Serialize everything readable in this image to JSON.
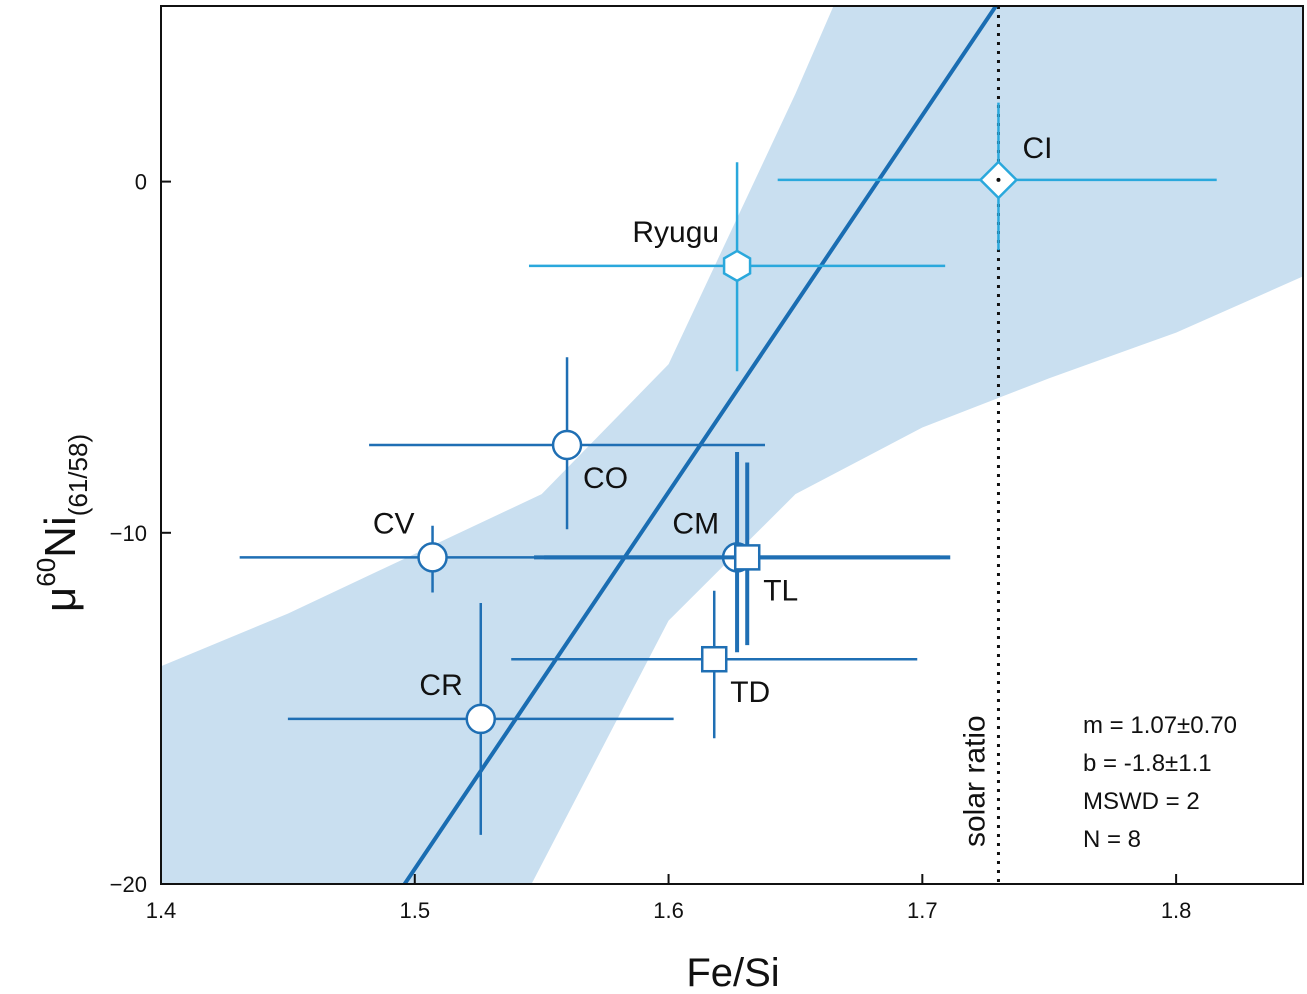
{
  "chart_data": {
    "type": "scatter",
    "xlabel": "Fe/Si",
    "ylabel": {
      "main": "μ",
      "sup": "60",
      "rest": "Ni",
      "sub": "(61/58)"
    },
    "xlim": [
      1.4,
      1.85
    ],
    "ylim": [
      -20,
      5
    ],
    "xticks": [
      {
        "value": 1.4,
        "label": "1.4"
      },
      {
        "value": 1.5,
        "label": "1.5"
      },
      {
        "value": 1.6,
        "label": "1.6"
      },
      {
        "value": 1.7,
        "label": "1.7"
      },
      {
        "value": 1.8,
        "label": "1.8"
      }
    ],
    "yticks": [
      {
        "value": -20,
        "label": "−20"
      },
      {
        "value": -10,
        "label": "−10"
      },
      {
        "value": 0,
        "label": "0"
      }
    ],
    "grid": false,
    "colors": {
      "dark_blue": "#1f6fb4",
      "light_blue": "#2aa8dc",
      "band": "#c9dff0",
      "fit_line": "#1a6db2"
    },
    "points": [
      {
        "label": "CI",
        "x": 1.73,
        "y": 0.05,
        "xerr": [
          0.087,
          0.086
        ],
        "yerr": [
          2.0,
          2.2
        ],
        "marker": "diamond",
        "color": "light",
        "thick": false,
        "label_pos": "upper-right"
      },
      {
        "label": "Ryugu",
        "x": 1.627,
        "y": -2.4,
        "xerr": [
          0.082,
          0.082
        ],
        "yerr": [
          3.0,
          2.95
        ],
        "marker": "hexagon",
        "color": "light",
        "thick": false,
        "label_pos": "upper-left"
      },
      {
        "label": "CO",
        "x": 1.56,
        "y": -7.5,
        "xerr": [
          0.078,
          0.078
        ],
        "yerr": [
          2.4,
          2.5
        ],
        "marker": "circle",
        "color": "dark",
        "thick": false,
        "label_pos": "lower-right"
      },
      {
        "label": "CV",
        "x": 1.507,
        "y": -10.7,
        "xerr": [
          0.076,
          0.077
        ],
        "yerr": [
          1.0,
          0.9
        ],
        "marker": "circle",
        "color": "dark",
        "thick": false,
        "label_pos": "upper-left"
      },
      {
        "label": "CM",
        "x": 1.627,
        "y": -10.7,
        "xerr": [
          0.08,
          0.08
        ],
        "yerr": [
          2.7,
          3.0
        ],
        "marker": "circle",
        "color": "dark",
        "thick": true,
        "label_pos": "upper-left"
      },
      {
        "label": "TL",
        "x": 1.631,
        "y": -10.7,
        "xerr": [
          0.08,
          0.08
        ],
        "yerr": [
          2.5,
          2.7
        ],
        "marker": "square",
        "color": "dark",
        "thick": true,
        "label_pos": "lower-right"
      },
      {
        "label": "TD",
        "x": 1.618,
        "y": -13.6,
        "xerr": [
          0.08,
          0.08
        ],
        "yerr": [
          2.25,
          1.95
        ],
        "marker": "square",
        "color": "dark",
        "thick": false,
        "label_pos": "lower-right"
      },
      {
        "label": "CR",
        "x": 1.526,
        "y": -15.3,
        "xerr": [
          0.076,
          0.076
        ],
        "yerr": [
          3.3,
          3.3
        ],
        "marker": "circle",
        "color": "dark",
        "thick": false,
        "label_pos": "upper-left"
      }
    ],
    "fit_line": {
      "x1": 1.496,
      "y1": -20,
      "x2": 1.729,
      "y2": 5
    },
    "confidence_band": {
      "upper": [
        [
          1.4,
          -13.8
        ],
        [
          1.45,
          -12.3
        ],
        [
          1.5,
          -10.6
        ],
        [
          1.55,
          -8.9
        ],
        [
          1.6,
          -5.2
        ],
        [
          1.65,
          2.5
        ],
        [
          1.665,
          5
        ],
        [
          1.85,
          5
        ]
      ],
      "lower": [
        [
          1.4,
          -20
        ],
        [
          1.546,
          -20
        ],
        [
          1.6,
          -12.5
        ],
        [
          1.65,
          -8.9
        ],
        [
          1.7,
          -7.0
        ],
        [
          1.75,
          -5.6
        ],
        [
          1.8,
          -4.3
        ],
        [
          1.85,
          -2.7
        ]
      ]
    },
    "solar_ratio": {
      "x": 1.73,
      "label": "solar ratio"
    },
    "stats": [
      "m = 1.07±0.70",
      "b = -1.8±1.1",
      "MSWD = 2",
      "N = 8"
    ]
  }
}
